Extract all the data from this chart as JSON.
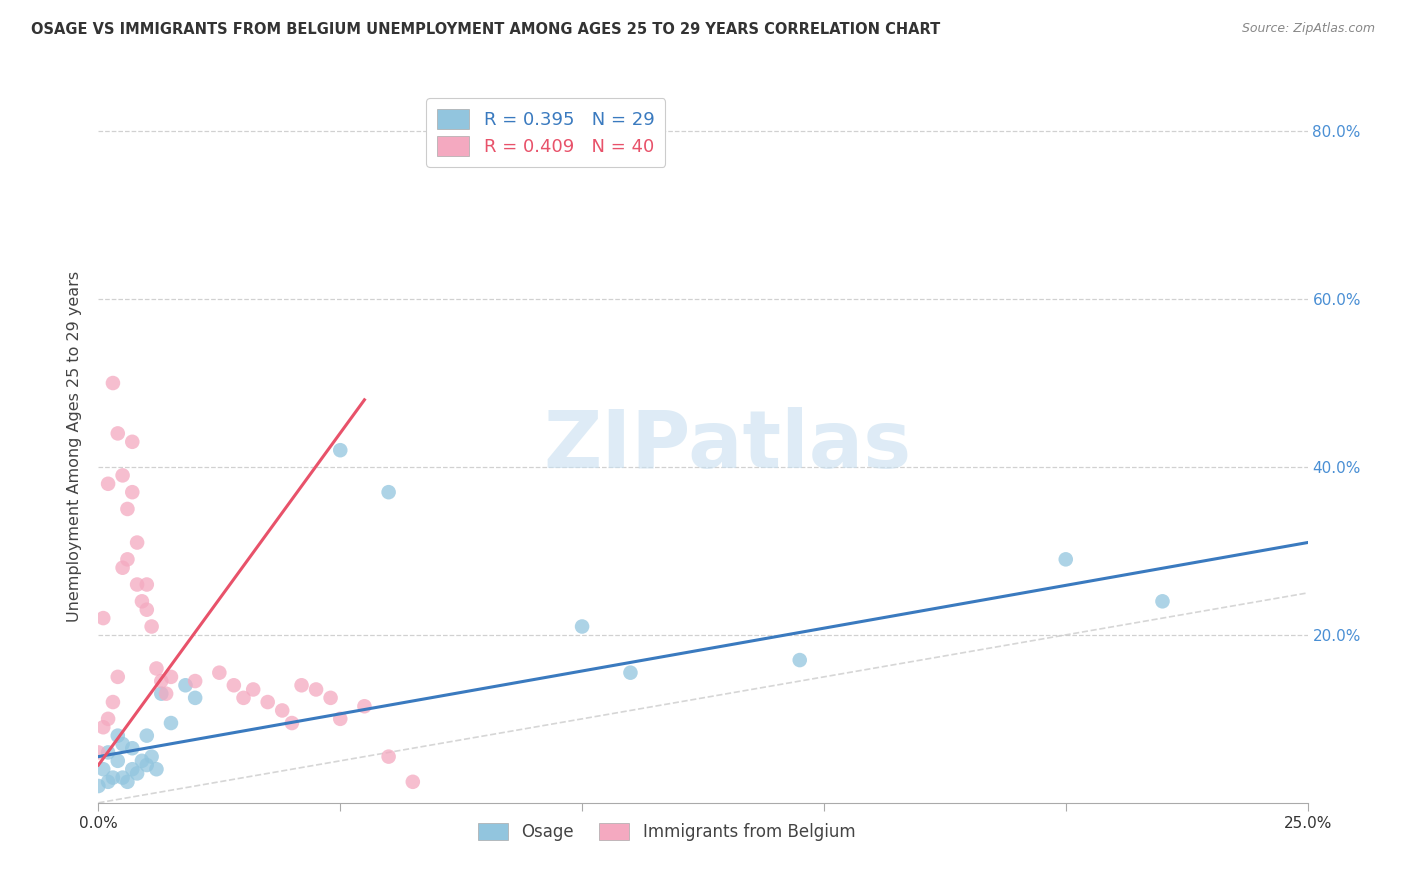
{
  "title": "OSAGE VS IMMIGRANTS FROM BELGIUM UNEMPLOYMENT AMONG AGES 25 TO 29 YEARS CORRELATION CHART",
  "source": "Source: ZipAtlas.com",
  "ylabel": "Unemployment Among Ages 25 to 29 years",
  "xlim": [
    0,
    0.25
  ],
  "ylim": [
    0,
    0.85
  ],
  "osage_color": "#92c5de",
  "belgium_color": "#f4a9c0",
  "osage_line_color": "#3a7abf",
  "belgium_line_color": "#e8526a",
  "diagonal_color": "#cccccc",
  "watermark_color": "#c8dff0",
  "background_color": "#ffffff",
  "grid_color": "#cccccc",
  "osage_x": [
    0.0,
    0.001,
    0.002,
    0.002,
    0.003,
    0.004,
    0.004,
    0.005,
    0.005,
    0.006,
    0.007,
    0.007,
    0.008,
    0.009,
    0.01,
    0.01,
    0.011,
    0.012,
    0.013,
    0.015,
    0.018,
    0.02,
    0.05,
    0.06,
    0.1,
    0.11,
    0.145,
    0.2,
    0.22
  ],
  "osage_y": [
    0.02,
    0.04,
    0.025,
    0.06,
    0.03,
    0.05,
    0.08,
    0.03,
    0.07,
    0.025,
    0.04,
    0.065,
    0.035,
    0.05,
    0.045,
    0.08,
    0.055,
    0.04,
    0.13,
    0.095,
    0.14,
    0.125,
    0.42,
    0.37,
    0.21,
    0.155,
    0.17,
    0.29,
    0.24
  ],
  "belgium_x": [
    0.0,
    0.001,
    0.001,
    0.002,
    0.002,
    0.003,
    0.003,
    0.004,
    0.004,
    0.005,
    0.005,
    0.006,
    0.006,
    0.007,
    0.007,
    0.008,
    0.008,
    0.009,
    0.01,
    0.01,
    0.011,
    0.012,
    0.013,
    0.014,
    0.015,
    0.02,
    0.025,
    0.028,
    0.03,
    0.032,
    0.035,
    0.038,
    0.04,
    0.042,
    0.045,
    0.048,
    0.05,
    0.055,
    0.06,
    0.065
  ],
  "belgium_y": [
    0.06,
    0.09,
    0.22,
    0.1,
    0.38,
    0.12,
    0.5,
    0.15,
    0.44,
    0.28,
    0.39,
    0.35,
    0.29,
    0.37,
    0.43,
    0.26,
    0.31,
    0.24,
    0.23,
    0.26,
    0.21,
    0.16,
    0.145,
    0.13,
    0.15,
    0.145,
    0.155,
    0.14,
    0.125,
    0.135,
    0.12,
    0.11,
    0.095,
    0.14,
    0.135,
    0.125,
    0.1,
    0.115,
    0.055,
    0.025
  ],
  "osage_line_x0": 0.0,
  "osage_line_y0": 0.055,
  "osage_line_x1": 0.25,
  "osage_line_y1": 0.31,
  "belgium_line_x0": 0.0,
  "belgium_line_y0": 0.045,
  "belgium_line_x1": 0.055,
  "belgium_line_y1": 0.48
}
